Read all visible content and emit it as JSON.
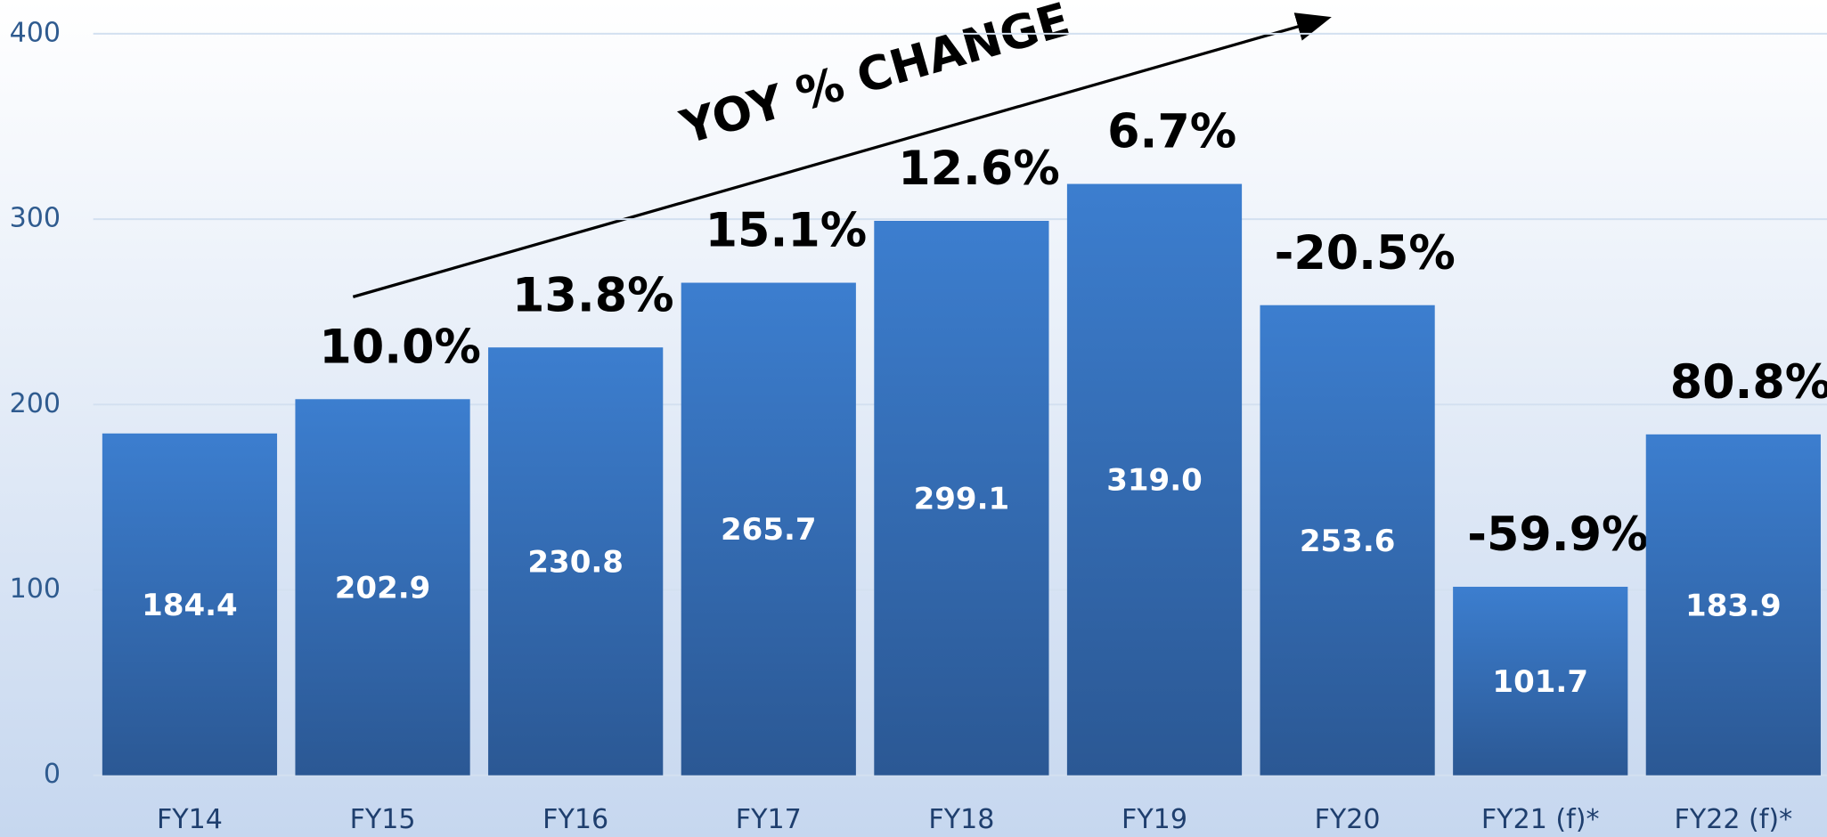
{
  "chart_data": {
    "type": "bar",
    "categories": [
      "FY14",
      "FY15",
      "FY16",
      "FY17",
      "FY18",
      "FY19",
      "FY20",
      "FY21 (f)*",
      "FY22 (f)*"
    ],
    "values": [
      184.4,
      202.9,
      230.8,
      265.7,
      299.1,
      319.0,
      253.6,
      101.7,
      183.9
    ],
    "value_labels": [
      "184.4",
      "202.9",
      "230.8",
      "265.7",
      "299.1",
      "319.0",
      "253.6",
      "101.7",
      "183.9"
    ],
    "color": "#3a7acb",
    "ylim": [
      0,
      400
    ],
    "yticks": [
      0,
      100,
      200,
      300,
      400
    ],
    "grid": true,
    "annotation": "YOY % CHANGE",
    "yoy_labels": [
      null,
      "10.0%",
      "13.8%",
      "15.1%",
      "12.6%",
      "6.7%",
      "-20.5%",
      "-59.9%",
      "80.8%"
    ]
  }
}
